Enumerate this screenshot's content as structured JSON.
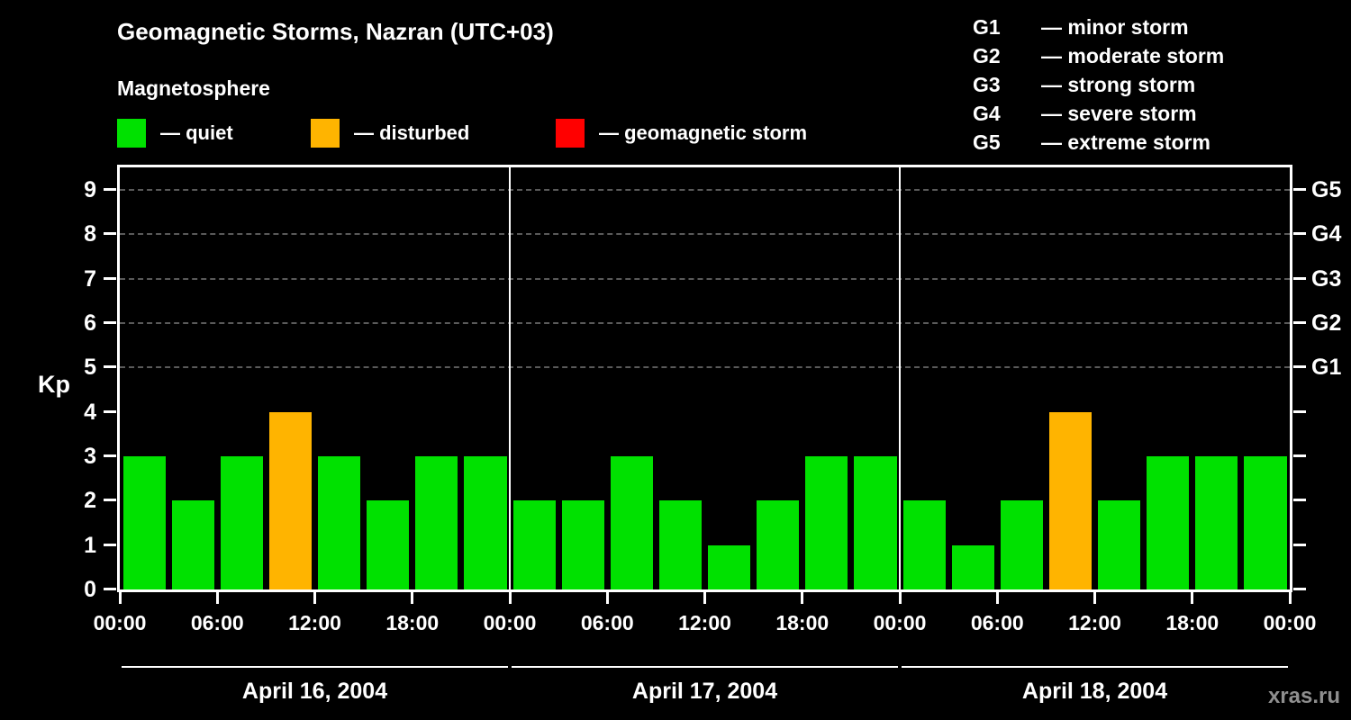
{
  "header": {
    "title": "Geomagnetic Storms, Nazran (UTC+03)",
    "subtitle": "Magnetosphere"
  },
  "legend": {
    "items": [
      {
        "key": "quiet",
        "label": "— quiet",
        "color": "#00e100"
      },
      {
        "key": "disturbed",
        "label": "— disturbed",
        "color": "#ffb400"
      },
      {
        "key": "storm",
        "label": "— geomagnetic storm",
        "color": "#ff0000"
      }
    ]
  },
  "g_legend": [
    {
      "code": "G1",
      "label": "— minor storm"
    },
    {
      "code": "G2",
      "label": "— moderate storm"
    },
    {
      "code": "G3",
      "label": "— strong storm"
    },
    {
      "code": "G4",
      "label": "— severe storm"
    },
    {
      "code": "G5",
      "label": "— extreme storm"
    }
  ],
  "watermark": "xras.ru",
  "chart_data": {
    "type": "bar",
    "title": "Geomagnetic Storms, Nazran (UTC+03)",
    "ylabel": "Kp",
    "ylim": [
      0,
      9
    ],
    "yticks": [
      0,
      1,
      2,
      3,
      4,
      5,
      6,
      7,
      8,
      9
    ],
    "gridlines": [
      5,
      6,
      7,
      8,
      9
    ],
    "right_axis": [
      {
        "kp": 5,
        "label": "G1"
      },
      {
        "kp": 6,
        "label": "G2"
      },
      {
        "kp": 7,
        "label": "G3"
      },
      {
        "kp": 8,
        "label": "G4"
      },
      {
        "kp": 9,
        "label": "G5"
      }
    ],
    "x_tick_labels": [
      "00:00",
      "06:00",
      "12:00",
      "18:00",
      "00:00",
      "06:00",
      "12:00",
      "18:00",
      "00:00",
      "06:00",
      "12:00",
      "18:00",
      "00:00"
    ],
    "bar_interval_hours": 3,
    "color_rules": {
      "quiet_max": 3,
      "disturbed": 4,
      "storm_min": 5
    },
    "days": [
      {
        "date": "April 16, 2004",
        "values": [
          3,
          2,
          3,
          4,
          3,
          2,
          3,
          3
        ]
      },
      {
        "date": "April 17, 2004",
        "values": [
          2,
          2,
          3,
          2,
          1,
          2,
          3,
          3
        ]
      },
      {
        "date": "April 18, 2004",
        "values": [
          2,
          1,
          2,
          4,
          2,
          3,
          3,
          3
        ]
      }
    ]
  }
}
